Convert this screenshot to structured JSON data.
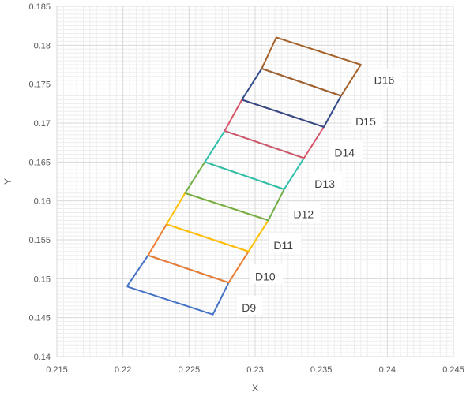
{
  "chart_data": {
    "type": "scatter",
    "title": "",
    "xlabel": "X",
    "ylabel": "Y",
    "xlim": [
      0.215,
      0.245
    ],
    "ylim": [
      0.14,
      0.185
    ],
    "x_ticks": [
      "0.215",
      "0.22",
      "0.225",
      "0.23",
      "0.235",
      "0.24",
      "0.245"
    ],
    "y_ticks": [
      "0.14",
      "0.145",
      "0.15",
      "0.155",
      "0.16",
      "0.165",
      "0.17",
      "0.175",
      "0.18",
      "0.185"
    ],
    "grid": true,
    "series": [
      {
        "name": "D9",
        "color": "#4472C4",
        "points": [
          [
            0.2203,
            0.149
          ],
          [
            0.2268,
            0.1454
          ],
          [
            0.228,
            0.1495
          ],
          [
            0.2219,
            0.153
          ],
          [
            0.2203,
            0.149
          ]
        ]
      },
      {
        "name": "D10",
        "color": "#ED7D31",
        "points": [
          [
            0.2219,
            0.153
          ],
          [
            0.228,
            0.1495
          ],
          [
            0.2295,
            0.1535
          ],
          [
            0.2233,
            0.157
          ],
          [
            0.2219,
            0.153
          ]
        ]
      },
      {
        "name": "D11",
        "color": "#FFC000",
        "points": [
          [
            0.2233,
            0.157
          ],
          [
            0.2295,
            0.1535
          ],
          [
            0.231,
            0.1575
          ],
          [
            0.2247,
            0.161
          ],
          [
            0.2233,
            0.157
          ]
        ]
      },
      {
        "name": "D12",
        "color": "#70AD47",
        "points": [
          [
            0.2247,
            0.161
          ],
          [
            0.231,
            0.1575
          ],
          [
            0.2322,
            0.1615
          ],
          [
            0.2262,
            0.165
          ],
          [
            0.2247,
            0.161
          ]
        ]
      },
      {
        "name": "D13",
        "color": "#2FBFAB",
        "points": [
          [
            0.2262,
            0.165
          ],
          [
            0.2322,
            0.1615
          ],
          [
            0.2337,
            0.1655
          ],
          [
            0.2277,
            0.169
          ],
          [
            0.2262,
            0.165
          ]
        ]
      },
      {
        "name": "D14",
        "color": "#D7566A",
        "points": [
          [
            0.2277,
            0.169
          ],
          [
            0.2337,
            0.1655
          ],
          [
            0.2352,
            0.1695
          ],
          [
            0.229,
            0.173
          ],
          [
            0.2277,
            0.169
          ]
        ]
      },
      {
        "name": "D15",
        "color": "#2F4A86",
        "points": [
          [
            0.229,
            0.173
          ],
          [
            0.2352,
            0.1695
          ],
          [
            0.2365,
            0.1735
          ],
          [
            0.2305,
            0.177
          ],
          [
            0.229,
            0.173
          ]
        ]
      },
      {
        "name": "D16",
        "color": "#A5612A",
        "points": [
          [
            0.2305,
            0.177
          ],
          [
            0.2365,
            0.1735
          ],
          [
            0.238,
            0.1775
          ],
          [
            0.2316,
            0.181
          ],
          [
            0.2305,
            0.177
          ]
        ]
      }
    ],
    "labels": [
      {
        "text": "D9",
        "x": 0.229,
        "y": 0.1462
      },
      {
        "text": "D10",
        "x": 0.23,
        "y": 0.1502
      },
      {
        "text": "D11",
        "x": 0.2314,
        "y": 0.1542
      },
      {
        "text": "D12",
        "x": 0.2329,
        "y": 0.1582
      },
      {
        "text": "D13",
        "x": 0.2345,
        "y": 0.1621
      },
      {
        "text": "D14",
        "x": 0.236,
        "y": 0.1661
      },
      {
        "text": "D15",
        "x": 0.2376,
        "y": 0.1701
      },
      {
        "text": "D16",
        "x": 0.239,
        "y": 0.1754
      }
    ]
  }
}
